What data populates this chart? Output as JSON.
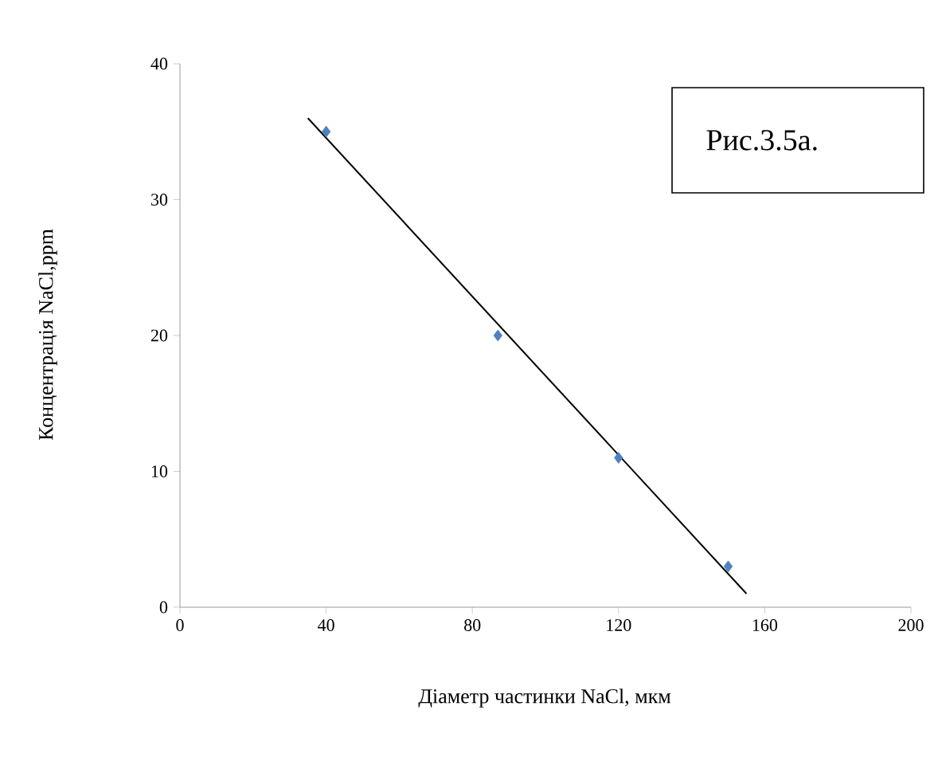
{
  "chart_data": {
    "type": "scatter",
    "xlabel": "Діаметр частинки NaCl, мкм",
    "ylabel": "Концентрація NaCl,ppm",
    "annotations": [
      "Рис.3.5а."
    ],
    "series": [
      {
        "color": "#4f81bd",
        "marker": "diamond",
        "x": [
          40,
          87,
          120,
          150
        ],
        "values": [
          35,
          20,
          11,
          3
        ]
      },
      {
        "type": "line",
        "color": "#000000",
        "marker": "none",
        "line_style": "solid",
        "x": [
          35,
          155
        ],
        "values": [
          36,
          1
        ]
      }
    ],
    "xlim": [
      0,
      200
    ],
    "xticks": [
      0,
      40,
      80,
      120,
      160,
      200
    ],
    "ylim": [
      0,
      40
    ],
    "yticks": [
      0,
      10,
      20,
      30,
      40
    ],
    "grid": false
  }
}
